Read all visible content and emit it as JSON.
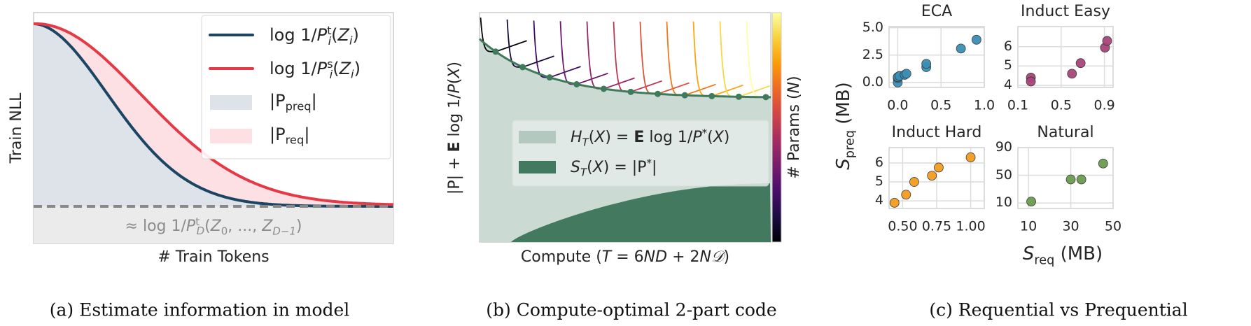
{
  "panel_a": {
    "ylabel": "Train NLL",
    "xlabel": "# Train Tokens",
    "caption": "(a) Estimate information in model",
    "baseline_label": [
      {
        "t": "≈ log 1/",
        "s": ""
      },
      {
        "t": "P",
        "s": "i"
      },
      {
        "t": "t",
        "s": "sup"
      },
      {
        "t": "D",
        "s": "sub-i"
      },
      {
        "t": "(",
        "s": ""
      },
      {
        "t": "Z",
        "s": "i"
      },
      {
        "t": "0",
        "s": "sub"
      },
      {
        "t": ", ..., ",
        "s": ""
      },
      {
        "t": "Z",
        "s": "i"
      },
      {
        "t": "D−1",
        "s": "sub-i"
      },
      {
        "t": ")",
        "s": ""
      }
    ],
    "legend": [
      {
        "kind": "line",
        "color": "#1b4563",
        "label": [
          {
            "t": "log 1/",
            "s": ""
          },
          {
            "t": "P",
            "s": "i"
          },
          {
            "t": "t",
            "s": "sup"
          },
          {
            "t": "i",
            "s": "sub-i"
          },
          {
            "t": "(",
            "s": ""
          },
          {
            "t": "Z",
            "s": "i"
          },
          {
            "t": "i",
            "s": "sub-i"
          },
          {
            "t": ")",
            "s": ""
          }
        ]
      },
      {
        "kind": "line",
        "color": "#e63946",
        "label": [
          {
            "t": "log 1/",
            "s": ""
          },
          {
            "t": "P",
            "s": "i"
          },
          {
            "t": "s",
            "s": "sup"
          },
          {
            "t": "i",
            "s": "sub-i"
          },
          {
            "t": "(",
            "s": ""
          },
          {
            "t": "Z",
            "s": "i"
          },
          {
            "t": "i",
            "s": "sub-i"
          },
          {
            "t": ")",
            "s": ""
          }
        ]
      },
      {
        "kind": "patch",
        "color": "#dee3ea",
        "label": [
          {
            "t": "|P",
            "s": ""
          },
          {
            "t": "preq",
            "s": "sub"
          },
          {
            "t": "|",
            "s": ""
          }
        ]
      },
      {
        "kind": "patch",
        "color": "#fde0e3",
        "label": [
          {
            "t": "|P",
            "s": ""
          },
          {
            "t": "req",
            "s": "sub"
          },
          {
            "t": "|",
            "s": ""
          }
        ]
      }
    ],
    "colors": {
      "teacher": "#1b4563",
      "student": "#e63946",
      "preq_fill": "#dee3ea",
      "req_fill": "#fde0e3",
      "baseline": "#888888",
      "baseline_band": "#ebebeb"
    }
  },
  "panel_b": {
    "ylabel": [
      {
        "t": "|P| + ",
        "s": ""
      },
      {
        "t": "E",
        "s": "b"
      },
      {
        "t": " log 1/",
        "s": ""
      },
      {
        "t": "P",
        "s": "i"
      },
      {
        "t": "(",
        "s": ""
      },
      {
        "t": "X",
        "s": "i"
      },
      {
        "t": ")",
        "s": ""
      }
    ],
    "xlabel": [
      {
        "t": "Compute (",
        "s": ""
      },
      {
        "t": "T",
        "s": "i"
      },
      {
        "t": " = 6",
        "s": ""
      },
      {
        "t": "ND",
        "s": "i"
      },
      {
        "t": " + 2",
        "s": ""
      },
      {
        "t": "N𝒟",
        "s": "i"
      },
      {
        "t": ")",
        "s": ""
      }
    ],
    "caption": "(b) Compute-optimal 2-part code",
    "colorbar_label": [
      {
        "t": "# Params (",
        "s": ""
      },
      {
        "t": "N",
        "s": "i"
      },
      {
        "t": ")",
        "s": ""
      }
    ],
    "colormap": "inferno",
    "n_models": 11,
    "legend": [
      {
        "color": "#b3c9bf",
        "label": [
          {
            "t": "H",
            "s": "i"
          },
          {
            "t": "T",
            "s": "sub-i"
          },
          {
            "t": "(",
            "s": ""
          },
          {
            "t": "X",
            "s": "i"
          },
          {
            "t": ") = ",
            "s": ""
          },
          {
            "t": "E",
            "s": "b"
          },
          {
            "t": " log 1/",
            "s": ""
          },
          {
            "t": "P",
            "s": "i"
          },
          {
            "t": "*",
            "s": "sup"
          },
          {
            "t": "(",
            "s": ""
          },
          {
            "t": "X",
            "s": "i"
          },
          {
            "t": ")",
            "s": ""
          }
        ]
      },
      {
        "color": "#43795e",
        "label": [
          {
            "t": "S",
            "s": "i"
          },
          {
            "t": "T",
            "s": "sub-i"
          },
          {
            "t": "(",
            "s": ""
          },
          {
            "t": "X",
            "s": "i"
          },
          {
            "t": ") = |P",
            "s": ""
          },
          {
            "t": "*",
            "s": "sup"
          },
          {
            "t": "|",
            "s": ""
          }
        ]
      }
    ],
    "colors": {
      "entropy_fill": "#cbdbd3",
      "structure_fill": "#43795e",
      "frontier": "#3f7a5a"
    }
  },
  "panel_c": {
    "caption": "(c) Requential vs Prequential",
    "ylabel": [
      {
        "t": "S",
        "s": "i"
      },
      {
        "t": "preq",
        "s": "sub"
      },
      {
        "t": " (MB)",
        "s": ""
      }
    ],
    "xlabel": [
      {
        "t": "S",
        "s": "i"
      },
      {
        "t": "req",
        "s": "sub"
      },
      {
        "t": " (MB)",
        "s": ""
      }
    ]
  },
  "chart_data": [
    {
      "type": "scatter",
      "title": "ECA",
      "color": "#3a8fb7",
      "xlim": [
        -0.1,
        1.0
      ],
      "ylim": [
        -0.45,
        5.1
      ],
      "xticks": [
        "0.0",
        "0.5",
        "1.0"
      ],
      "xtick_values": [
        0,
        0.5,
        1.0
      ],
      "yticks": [
        "5.0",
        "2.5",
        "0.0"
      ],
      "ytick_values": [
        5,
        2.5,
        0
      ],
      "x": [
        0.0,
        0.0,
        0.0,
        0.02,
        0.08,
        0.1,
        0.33,
        0.33,
        0.73,
        0.91
      ],
      "y": [
        0.0,
        0.4,
        0.5,
        0.6,
        0.7,
        0.8,
        1.4,
        1.7,
        3.1,
        3.9
      ]
    },
    {
      "type": "scatter",
      "title": "Induct Easy",
      "color": "#a8457a",
      "xlim": [
        0.1,
        0.98
      ],
      "ylim": [
        3.89,
        7.04
      ],
      "xticks": [
        "0.1",
        "0.5",
        "0.9"
      ],
      "xtick_values": [
        0.1,
        0.5,
        0.9
      ],
      "yticks": [
        "6",
        "5",
        "4"
      ],
      "ytick_values": [
        6,
        5,
        4
      ],
      "x": [
        0.22,
        0.22,
        0.6,
        0.68,
        0.905,
        0.925
      ],
      "y": [
        4.4,
        4.2,
        4.6,
        5.15,
        5.95,
        6.3
      ]
    },
    {
      "type": "scatter",
      "title": "Induct Hard",
      "color": "#f39c1f",
      "xlim": [
        0.4,
        1.1
      ],
      "ylim": [
        3.6,
        6.81
      ],
      "xticks": [
        "0.50",
        "0.75",
        "1.00"
      ],
      "xtick_values": [
        0.5,
        0.75,
        1.0
      ],
      "yticks": [
        "6",
        "5",
        "4"
      ],
      "ytick_values": [
        6,
        5,
        4
      ],
      "x": [
        0.44,
        0.525,
        0.585,
        0.715,
        0.765,
        1.0
      ],
      "y": [
        3.9,
        4.33,
        5.0,
        5.33,
        5.76,
        6.3
      ]
    },
    {
      "type": "scatter",
      "title": "Natural",
      "color": "#6c9b50",
      "xlim": [
        5,
        50
      ],
      "ylim": [
        2,
        90
      ],
      "xticks": [
        "10",
        "30",
        "50"
      ],
      "xtick_values": [
        10,
        30,
        50
      ],
      "yticks": [
        "90",
        "50",
        "10"
      ],
      "ytick_values": [
        90,
        50,
        10
      ],
      "x": [
        11.3,
        30,
        35,
        45.3
      ],
      "y": [
        12,
        44,
        44,
        67
      ]
    }
  ]
}
